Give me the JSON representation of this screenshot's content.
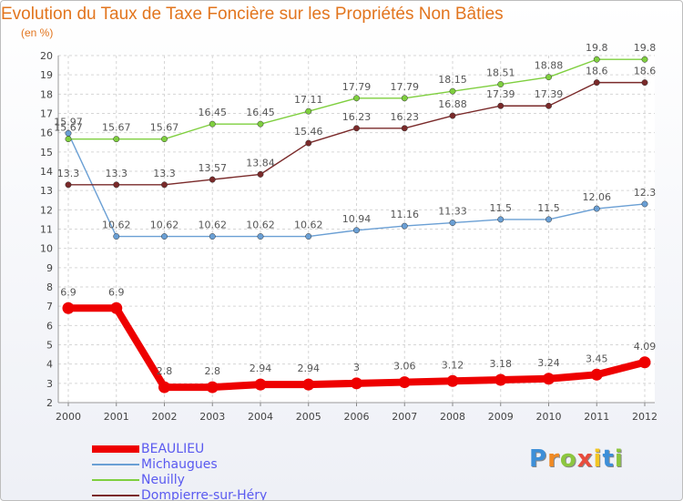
{
  "chart_data": {
    "type": "line",
    "title": "Evolution du Taux de Taxe Foncière sur les Propriétés Non Bâties",
    "ylabel": "(en %)",
    "xlabel": "",
    "x": [
      "2000",
      "2001",
      "2002",
      "2003",
      "2004",
      "2005",
      "2006",
      "2007",
      "2008",
      "2009",
      "2010",
      "2011",
      "2012"
    ],
    "ylim": [
      2,
      20
    ],
    "yticks": [
      "2",
      "3",
      "4",
      "5",
      "6",
      "7",
      "8",
      "9",
      "10",
      "11",
      "12",
      "13",
      "14",
      "15",
      "16",
      "17",
      "18",
      "19",
      "20"
    ],
    "grid": true,
    "legend_position": "bottom-left",
    "series": [
      {
        "name": "BEAULIEU",
        "color": "#ee0000",
        "emphasis": true,
        "values": [
          6.9,
          6.9,
          2.8,
          2.8,
          2.94,
          2.94,
          3,
          3.06,
          3.12,
          3.18,
          3.24,
          3.45,
          4.09
        ],
        "labels": [
          "6.9",
          "6.9",
          "2.8",
          "2.8",
          "2.94",
          "2.94",
          "3",
          "3.06",
          "3.12",
          "3.18",
          "3.24",
          "3.45",
          "4.09"
        ]
      },
      {
        "name": "Michaugues",
        "color": "#6a9fd4",
        "emphasis": false,
        "values": [
          15.97,
          10.62,
          10.62,
          10.62,
          10.62,
          10.62,
          10.94,
          11.16,
          11.33,
          11.5,
          11.5,
          12.06,
          12.3
        ],
        "labels": [
          "15.97",
          "10.62",
          "10.62",
          "10.62",
          "10.62",
          "10.62",
          "10.94",
          "11.16",
          "11.33",
          "11.5",
          "11.5",
          "12.06",
          "12.3"
        ]
      },
      {
        "name": "Neuilly",
        "color": "#7fcf3f",
        "emphasis": false,
        "values": [
          15.67,
          15.67,
          15.67,
          16.45,
          16.45,
          17.11,
          17.79,
          17.79,
          18.15,
          18.51,
          18.88,
          19.8,
          19.8
        ],
        "labels": [
          "15.67",
          "15.67",
          "15.67",
          "16.45",
          "16.45",
          "17.11",
          "17.79",
          "17.79",
          "18.15",
          "18.51",
          "18.88",
          "19.8",
          "19.8"
        ]
      },
      {
        "name": "Dompierre-sur-Héry",
        "color": "#7a2a2a",
        "emphasis": false,
        "values": [
          13.3,
          13.3,
          13.3,
          13.57,
          13.84,
          15.46,
          16.23,
          16.23,
          16.88,
          17.39,
          17.39,
          18.6,
          18.6
        ],
        "labels": [
          "13.3",
          "13.3",
          "13.3",
          "13.57",
          "13.84",
          "15.46",
          "16.23",
          "16.23",
          "16.88",
          "17.39",
          "17.39",
          "18.6",
          "18.6"
        ]
      }
    ]
  },
  "brand": {
    "letters": [
      "P",
      "r",
      "o",
      "x",
      "i",
      "t",
      "i"
    ],
    "colors": [
      "#3d8fd8",
      "#f08a24",
      "#8cc63f",
      "#e84c3d",
      "#f3c623",
      "#3d8fd8",
      "#8cc63f"
    ]
  }
}
